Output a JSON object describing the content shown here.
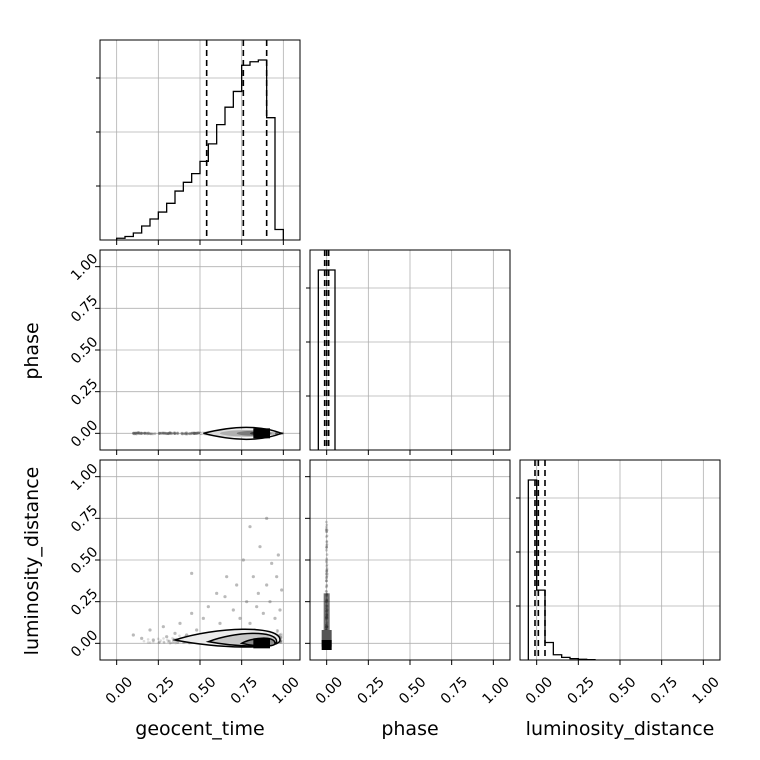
{
  "chart_data": {
    "type": "corner",
    "parameters": [
      "geocent_time",
      "phase",
      "luminosity_distance"
    ],
    "axis_range": [
      -0.1,
      1.1
    ],
    "tick_labels": [
      "0.00",
      "0.25",
      "0.50",
      "0.75",
      "1.00"
    ],
    "tick_values": [
      0,
      0.25,
      0.5,
      0.75,
      1.0
    ],
    "grid": true,
    "diagonal": [
      {
        "parameter": "geocent_time",
        "bin_edges": [
          0.0,
          0.05,
          0.1,
          0.15,
          0.2,
          0.25,
          0.3,
          0.35,
          0.4,
          0.45,
          0.5,
          0.55,
          0.6,
          0.65,
          0.7,
          0.75,
          0.8,
          0.85,
          0.9,
          0.95,
          1.0
        ],
        "counts": [
          0.01,
          0.02,
          0.04,
          0.08,
          0.12,
          0.16,
          0.21,
          0.28,
          0.33,
          0.38,
          0.45,
          0.55,
          0.66,
          0.76,
          0.85,
          1.0,
          1.02,
          1.03,
          0.7,
          0.06
        ],
        "quantiles": [
          0.54,
          0.76,
          0.9
        ]
      },
      {
        "parameter": "phase",
        "bin_edges": [
          -0.05,
          0.0,
          0.05
        ],
        "counts": [
          1.0,
          1.0
        ],
        "quantiles": [
          -0.012,
          0.0,
          0.012
        ]
      },
      {
        "parameter": "luminosity_distance",
        "bin_edges": [
          -0.05,
          0.0,
          0.05,
          0.1,
          0.15,
          0.2,
          0.25,
          0.3,
          0.35
        ],
        "counts": [
          1.03,
          0.4,
          0.1,
          0.03,
          0.015,
          0.008,
          0.004,
          0.002
        ],
        "quantiles": [
          -0.01,
          0.01,
          0.05
        ]
      }
    ],
    "pairs": [
      {
        "x": "geocent_time",
        "y": "phase",
        "scatter_x_range": [
          0.1,
          1.0
        ],
        "scatter_y": 0.0,
        "density_peak": [
          0.87,
          0.0
        ]
      },
      {
        "x": "geocent_time",
        "y": "luminosity_distance",
        "scatter_points": [
          [
            0.1,
            0.05
          ],
          [
            0.15,
            0.03
          ],
          [
            0.2,
            0.08
          ],
          [
            0.22,
            0.02
          ],
          [
            0.28,
            0.1
          ],
          [
            0.3,
            0.04
          ],
          [
            0.35,
            0.06
          ],
          [
            0.38,
            0.12
          ],
          [
            0.42,
            0.05
          ],
          [
            0.45,
            0.18
          ],
          [
            0.45,
            0.42
          ],
          [
            0.48,
            0.08
          ],
          [
            0.52,
            0.15
          ],
          [
            0.55,
            0.22
          ],
          [
            0.58,
            0.06
          ],
          [
            0.6,
            0.3
          ],
          [
            0.62,
            0.12
          ],
          [
            0.65,
            0.28
          ],
          [
            0.66,
            0.4
          ],
          [
            0.7,
            0.2
          ],
          [
            0.72,
            0.35
          ],
          [
            0.74,
            0.15
          ],
          [
            0.76,
            0.5
          ],
          [
            0.78,
            0.25
          ],
          [
            0.8,
            0.7
          ],
          [
            0.8,
            0.12
          ],
          [
            0.82,
            0.4
          ],
          [
            0.84,
            0.22
          ],
          [
            0.85,
            0.3
          ],
          [
            0.86,
            0.58
          ],
          [
            0.88,
            0.18
          ],
          [
            0.9,
            0.75
          ],
          [
            0.9,
            0.35
          ],
          [
            0.92,
            0.25
          ],
          [
            0.93,
            0.48
          ],
          [
            0.95,
            0.15
          ],
          [
            0.96,
            0.4
          ],
          [
            0.97,
            0.53
          ],
          [
            0.98,
            0.2
          ],
          [
            0.99,
            0.32
          ]
        ],
        "contours": [
          {
            "x": [
              0.35,
              0.98
            ],
            "y": [
              -0.03,
              0.1
            ],
            "center": [
              0.84,
              0.02
            ]
          },
          {
            "x": [
              0.55,
              0.96
            ],
            "y": [
              -0.02,
              0.07
            ],
            "center": [
              0.86,
              0.01
            ]
          },
          {
            "x": [
              0.75,
              0.95
            ],
            "y": [
              -0.015,
              0.035
            ],
            "center": [
              0.87,
              0.0
            ]
          }
        ]
      },
      {
        "x": "phase",
        "y": "luminosity_distance",
        "scatter_x": 0.0,
        "scatter_y_range": [
          0.0,
          0.75
        ],
        "density_peak": [
          0.0,
          0.0
        ]
      }
    ]
  }
}
